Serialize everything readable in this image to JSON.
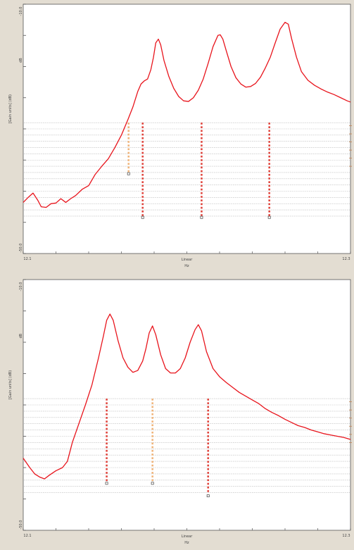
{
  "chart_data": [
    {
      "type": "line",
      "title": "",
      "xlabel": "Hz",
      "ylabel": "[Gain units] (dB)",
      "x_scale_label": "Linear",
      "x_tick_labels": [
        "12.1",
        "12.3"
      ],
      "y_tick_labels": [
        "-10.0",
        "dB",
        "-50.0"
      ],
      "xlim": [
        0,
        100
      ],
      "ylim": [
        -50,
        -10
      ],
      "grid": "horizontal dashed, lower half",
      "line_color": "#e8141c",
      "series": [
        {
          "values": [
            [
              0,
              -41.8
            ],
            [
              1.5,
              -41.0
            ],
            [
              3,
              -40.3
            ],
            [
              4.5,
              -41.5
            ],
            [
              5.5,
              -42.5
            ],
            [
              7,
              -42.6
            ],
            [
              8.5,
              -42.0
            ],
            [
              10,
              -41.9
            ],
            [
              11.5,
              -41.2
            ],
            [
              13,
              -41.8
            ],
            [
              14.5,
              -41.2
            ],
            [
              16,
              -40.7
            ],
            [
              18,
              -39.7
            ],
            [
              20,
              -39.1
            ],
            [
              22,
              -37.3
            ],
            [
              24,
              -36.0
            ],
            [
              26,
              -34.8
            ],
            [
              28,
              -33.0
            ],
            [
              30,
              -31.0
            ],
            [
              32,
              -28.5
            ],
            [
              33.5,
              -26.5
            ],
            [
              35,
              -24.0
            ],
            [
              36,
              -22.8
            ],
            [
              37,
              -22.3
            ],
            [
              38,
              -22.0
            ],
            [
              39,
              -20.5
            ],
            [
              39.8,
              -18.5
            ],
            [
              40.5,
              -16.2
            ],
            [
              41.3,
              -15.6
            ],
            [
              42,
              -16.5
            ],
            [
              43,
              -19.0
            ],
            [
              44.5,
              -21.6
            ],
            [
              46,
              -23.5
            ],
            [
              47.5,
              -24.8
            ],
            [
              49,
              -25.5
            ],
            [
              50.5,
              -25.6
            ],
            [
              52,
              -25.0
            ],
            [
              53.5,
              -23.8
            ],
            [
              55,
              -22.0
            ],
            [
              56.5,
              -19.5
            ],
            [
              58,
              -16.8
            ],
            [
              59.5,
              -15.0
            ],
            [
              60.2,
              -14.9
            ],
            [
              61,
              -15.6
            ],
            [
              62,
              -17.4
            ],
            [
              63.5,
              -20.0
            ],
            [
              65,
              -21.8
            ],
            [
              66.5,
              -22.8
            ],
            [
              68,
              -23.3
            ],
            [
              69.5,
              -23.2
            ],
            [
              71,
              -22.7
            ],
            [
              72.5,
              -21.7
            ],
            [
              74,
              -20.2
            ],
            [
              75.5,
              -18.5
            ],
            [
              77,
              -16.2
            ],
            [
              78.5,
              -14.0
            ],
            [
              80,
              -12.9
            ],
            [
              81,
              -13.2
            ],
            [
              82,
              -15.5
            ],
            [
              83.5,
              -18.5
            ],
            [
              85,
              -20.8
            ],
            [
              87,
              -22.2
            ],
            [
              89,
              -23.0
            ],
            [
              91,
              -23.6
            ],
            [
              93,
              -24.1
            ],
            [
              95,
              -24.5
            ],
            [
              97,
              -25.0
            ],
            [
              99,
              -25.5
            ],
            [
              100,
              -25.7
            ]
          ]
        }
      ],
      "markers": [
        {
          "x": 32.2,
          "y_top": -29.0,
          "y_bottom": -37.2,
          "color": "#f0b47a"
        },
        {
          "x": 36.5,
          "y_top": -29.0,
          "y_bottom": -44.2,
          "color": "#e0443c"
        },
        {
          "x": 54.5,
          "y_top": -29.0,
          "y_bottom": -44.2,
          "color": "#e0443c"
        },
        {
          "x": 75.2,
          "y_top": -29.0,
          "y_bottom": -44.2,
          "color": "#e0443c"
        }
      ]
    },
    {
      "type": "line",
      "title": "",
      "xlabel": "Hz",
      "ylabel": "[Gain units] (dB)",
      "x_scale_label": "Linear",
      "x_tick_labels": [
        "12.1",
        "12.3"
      ],
      "y_tick_labels": [
        "-10.0",
        "dB",
        "-50.0"
      ],
      "xlim": [
        0,
        100
      ],
      "ylim": [
        -50,
        -10
      ],
      "grid": "horizontal dashed, lower half",
      "line_color": "#e8141c",
      "series": [
        {
          "values": [
            [
              0,
              -38.5
            ],
            [
              2,
              -40.0
            ],
            [
              3.5,
              -41.0
            ],
            [
              5,
              -41.5
            ],
            [
              6.5,
              -41.8
            ],
            [
              8,
              -41.2
            ],
            [
              10,
              -40.5
            ],
            [
              12,
              -40.0
            ],
            [
              13.5,
              -39.0
            ],
            [
              15,
              -36.0
            ],
            [
              17,
              -33.0
            ],
            [
              19,
              -30.0
            ],
            [
              21,
              -26.8
            ],
            [
              23,
              -22.5
            ],
            [
              24.5,
              -19.0
            ],
            [
              25.5,
              -16.5
            ],
            [
              26.5,
              -15.5
            ],
            [
              27.5,
              -16.5
            ],
            [
              29,
              -19.8
            ],
            [
              30.5,
              -22.5
            ],
            [
              32,
              -24.0
            ],
            [
              33.5,
              -24.8
            ],
            [
              35,
              -24.5
            ],
            [
              36.5,
              -23.0
            ],
            [
              37.5,
              -21.0
            ],
            [
              38.5,
              -18.5
            ],
            [
              39.5,
              -17.4
            ],
            [
              40.5,
              -18.8
            ],
            [
              42,
              -22.0
            ],
            [
              43.5,
              -24.2
            ],
            [
              45,
              -24.9
            ],
            [
              46.5,
              -24.9
            ],
            [
              48,
              -24.2
            ],
            [
              49.5,
              -22.5
            ],
            [
              51,
              -20.0
            ],
            [
              52.5,
              -18.0
            ],
            [
              53.5,
              -17.2
            ],
            [
              54.5,
              -18.2
            ],
            [
              56,
              -21.5
            ],
            [
              58,
              -24.2
            ],
            [
              60,
              -25.5
            ],
            [
              62,
              -26.4
            ],
            [
              64,
              -27.2
            ],
            [
              66,
              -28.0
            ],
            [
              68,
              -28.6
            ],
            [
              70,
              -29.2
            ],
            [
              72,
              -29.8
            ],
            [
              74,
              -30.6
            ],
            [
              76,
              -31.2
            ],
            [
              78,
              -31.7
            ],
            [
              80,
              -32.3
            ],
            [
              82,
              -32.8
            ],
            [
              84,
              -33.3
            ],
            [
              86,
              -33.6
            ],
            [
              88,
              -34.0
            ],
            [
              90,
              -34.3
            ],
            [
              92,
              -34.6
            ],
            [
              94,
              -34.8
            ],
            [
              96,
              -35.0
            ],
            [
              98,
              -35.2
            ],
            [
              100,
              -35.5
            ]
          ]
        }
      ],
      "markers": [
        {
          "x": 25.5,
          "y_top": -29.0,
          "y_bottom": -42.5,
          "color": "#e0443c"
        },
        {
          "x": 39.5,
          "y_top": -29.0,
          "y_bottom": -42.5,
          "color": "#f0b47a"
        },
        {
          "x": 56.5,
          "y_top": -29.0,
          "y_bottom": -44.5,
          "color": "#e0443c"
        }
      ]
    }
  ]
}
